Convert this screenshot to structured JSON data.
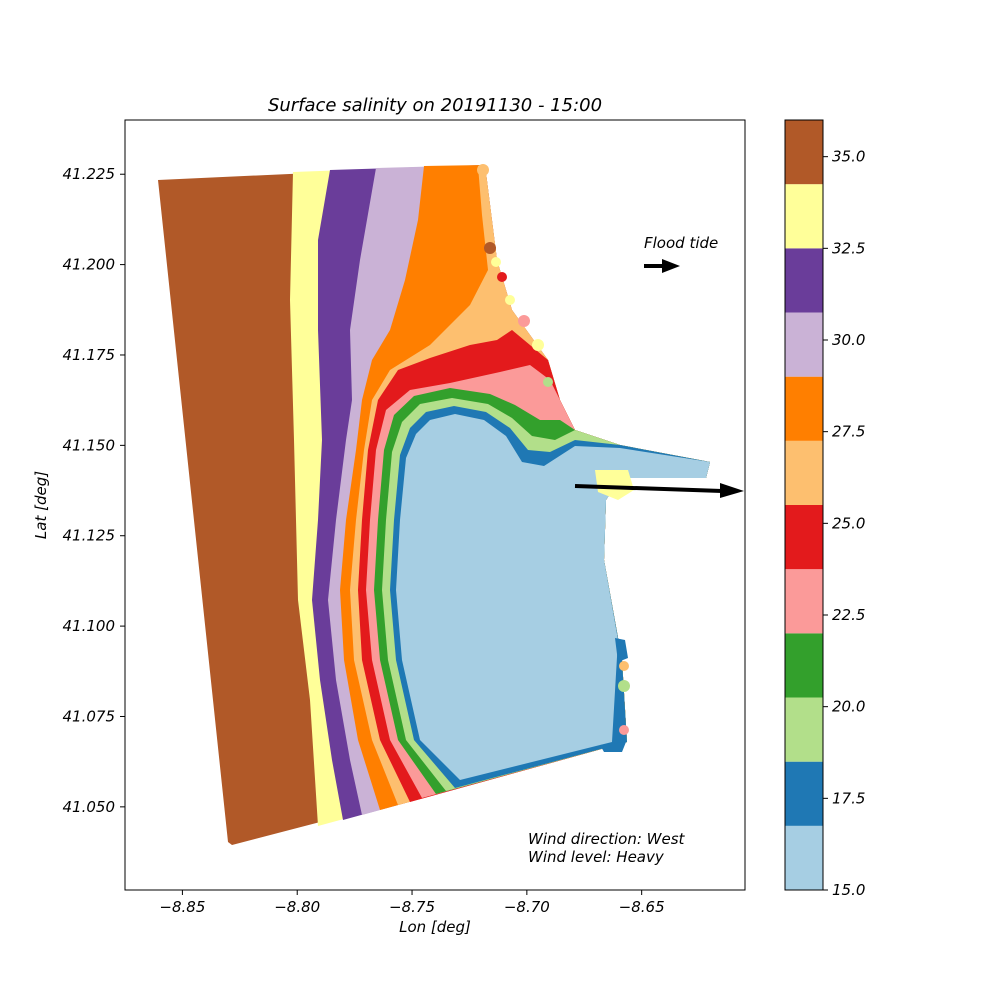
{
  "chart_data": {
    "type": "heatmap",
    "title": "Surface salinity on 20191130 - 15:00",
    "xlabel": "Lon [deg]",
    "ylabel": "Lat [deg]",
    "xlim": [
      -8.875,
      -8.605
    ],
    "ylim": [
      41.027,
      41.24
    ],
    "x_ticks": [
      -8.85,
      -8.8,
      -8.75,
      -8.7,
      -8.65
    ],
    "x_tick_labels": [
      "−8.85",
      "−8.80",
      "−8.75",
      "−8.70",
      "−8.65"
    ],
    "y_ticks": [
      41.05,
      41.075,
      41.1,
      41.125,
      41.15,
      41.175,
      41.2,
      41.225
    ],
    "y_tick_labels": [
      "41.050",
      "41.075",
      "41.100",
      "41.125",
      "41.150",
      "41.175",
      "41.200",
      "41.225"
    ],
    "grid": false,
    "colorbar": {
      "min": 15.0,
      "max": 36.0,
      "levels": [
        {
          "from": 15.0,
          "to": 16.75,
          "color": "#a6cee3"
        },
        {
          "from": 16.75,
          "to": 18.5,
          "color": "#1f78b4"
        },
        {
          "from": 18.5,
          "to": 20.25,
          "color": "#b2df8a"
        },
        {
          "from": 20.25,
          "to": 22.0,
          "color": "#33a02c"
        },
        {
          "from": 22.0,
          "to": 23.75,
          "color": "#fb9a99"
        },
        {
          "from": 23.75,
          "to": 25.5,
          "color": "#e31a1c"
        },
        {
          "from": 25.5,
          "to": 27.25,
          "color": "#fdbf6f"
        },
        {
          "from": 27.25,
          "to": 29.0,
          "color": "#ff7f00"
        },
        {
          "from": 29.0,
          "to": 30.75,
          "color": "#cab2d6"
        },
        {
          "from": 30.75,
          "to": 32.5,
          "color": "#6a3d9a"
        },
        {
          "from": 32.5,
          "to": 34.25,
          "color": "#ffff99"
        },
        {
          "from": 34.25,
          "to": 36.0,
          "color": "#b15928"
        }
      ],
      "ticks": [
        15.0,
        17.5,
        20.0,
        22.5,
        25.0,
        27.5,
        30.0,
        32.5,
        35.0
      ],
      "tick_labels": [
        "15.0",
        "17.5",
        "20.0",
        "22.5",
        "25.0",
        "27.5",
        "30.0",
        "32.5",
        "35.0"
      ]
    },
    "annotations": {
      "flood_tide": "Flood tide",
      "wind_direction": "Wind direction: West",
      "wind_level": "Wind level: Heavy"
    }
  }
}
